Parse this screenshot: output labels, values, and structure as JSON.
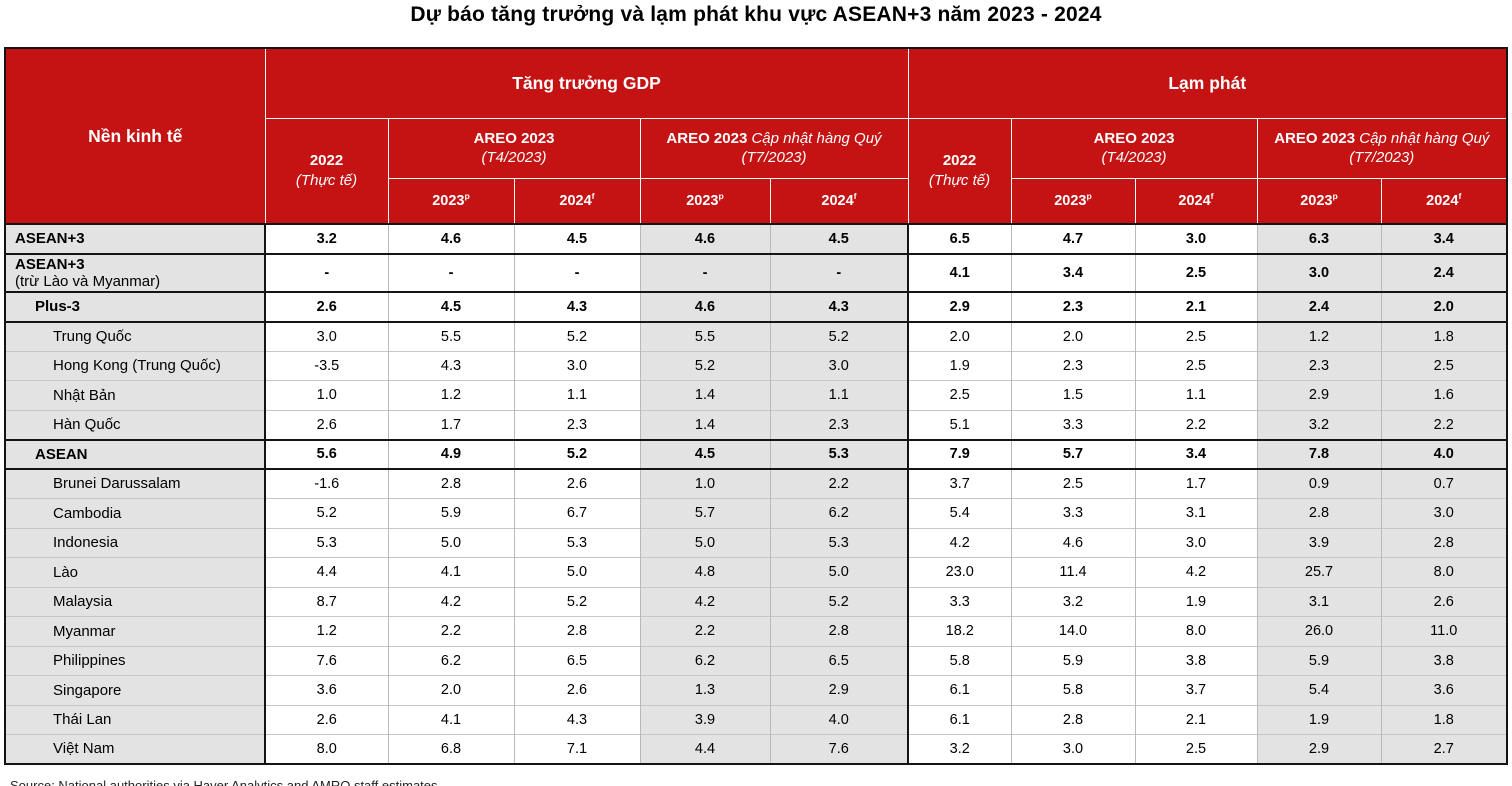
{
  "title": "Dự báo tăng trưởng và lạm phát khu vực ASEAN+3 năm 2023 - 2024",
  "source": "Source: National authorities via Haver Analytics and AMRO staff estimates",
  "colors": {
    "header_red": "#c51313",
    "shaded_column": "#e3e3e3",
    "border_dark": "#141414"
  },
  "table": {
    "corner_header": "Nền kinh tế",
    "gdp_header": "Tăng trưởng GDP",
    "inflation_header": "Lạm phát",
    "col_2022": {
      "year": "2022",
      "note": "(Thực tế)"
    },
    "areo": {
      "title": "AREO 2023",
      "note": "(T4/2023)"
    },
    "areo_update": {
      "title": "AREO 2023",
      "subtitle": "Cập nhật hàng Quý",
      "note": "(T7/2023)"
    },
    "year_2023": {
      "label": "2023",
      "sup": "p"
    },
    "year_2024": {
      "label": "2024",
      "sup": "f"
    },
    "rows": [
      {
        "label": "ASEAN+3",
        "label2": null,
        "indent": 0,
        "bold": true,
        "sep": "dark",
        "values": [
          "3.2",
          "4.6",
          "4.5",
          "4.6",
          "4.5",
          "6.5",
          "4.7",
          "3.0",
          "6.3",
          "3.4"
        ]
      },
      {
        "label": "ASEAN+3",
        "label2": "(trừ Lào và Myanmar)",
        "indent": 0,
        "bold": true,
        "sep": "dark",
        "values": [
          "-",
          "-",
          "-",
          "-",
          "-",
          "4.1",
          "3.4",
          "2.5",
          "3.0",
          "2.4"
        ]
      },
      {
        "label": "Plus-3",
        "label2": null,
        "indent": 1,
        "bold": true,
        "sep": "dark",
        "values": [
          "2.6",
          "4.5",
          "4.3",
          "4.6",
          "4.3",
          "2.9",
          "2.3",
          "2.1",
          "2.4",
          "2.0"
        ]
      },
      {
        "label": "Trung Quốc",
        "label2": null,
        "indent": 2,
        "bold": false,
        "sep": "dark",
        "values": [
          "3.0",
          "5.5",
          "5.2",
          "5.5",
          "5.2",
          "2.0",
          "2.0",
          "2.5",
          "1.2",
          "1.8"
        ]
      },
      {
        "label": "Hong Kong (Trung Quốc)",
        "label2": null,
        "indent": 2,
        "bold": false,
        "sep": "light",
        "values": [
          "-3.5",
          "4.3",
          "3.0",
          "5.2",
          "3.0",
          "1.9",
          "2.3",
          "2.5",
          "2.3",
          "2.5"
        ]
      },
      {
        "label": "Nhật Bản",
        "label2": null,
        "indent": 2,
        "bold": false,
        "sep": "light",
        "values": [
          "1.0",
          "1.2",
          "1.1",
          "1.4",
          "1.1",
          "2.5",
          "1.5",
          "1.1",
          "2.9",
          "1.6"
        ]
      },
      {
        "label": "Hàn Quốc",
        "label2": null,
        "indent": 2,
        "bold": false,
        "sep": "light",
        "values": [
          "2.6",
          "1.7",
          "2.3",
          "1.4",
          "2.3",
          "5.1",
          "3.3",
          "2.2",
          "3.2",
          "2.2"
        ]
      },
      {
        "label": "ASEAN",
        "label2": null,
        "indent": 1,
        "bold": true,
        "sep": "dark",
        "values": [
          "5.6",
          "4.9",
          "5.2",
          "4.5",
          "5.3",
          "7.9",
          "5.7",
          "3.4",
          "7.8",
          "4.0"
        ]
      },
      {
        "label": "Brunei Darussalam",
        "label2": null,
        "indent": 2,
        "bold": false,
        "sep": "dark",
        "values": [
          "-1.6",
          "2.8",
          "2.6",
          "1.0",
          "2.2",
          "3.7",
          "2.5",
          "1.7",
          "0.9",
          "0.7"
        ]
      },
      {
        "label": "Cambodia",
        "label2": null,
        "indent": 2,
        "bold": false,
        "sep": "light",
        "values": [
          "5.2",
          "5.9",
          "6.7",
          "5.7",
          "6.2",
          "5.4",
          "3.3",
          "3.1",
          "2.8",
          "3.0"
        ]
      },
      {
        "label": "Indonesia",
        "label2": null,
        "indent": 2,
        "bold": false,
        "sep": "light",
        "values": [
          "5.3",
          "5.0",
          "5.3",
          "5.0",
          "5.3",
          "4.2",
          "4.6",
          "3.0",
          "3.9",
          "2.8"
        ]
      },
      {
        "label": "Lào",
        "label2": null,
        "indent": 2,
        "bold": false,
        "sep": "light",
        "values": [
          "4.4",
          "4.1",
          "5.0",
          "4.8",
          "5.0",
          "23.0",
          "11.4",
          "4.2",
          "25.7",
          "8.0"
        ]
      },
      {
        "label": "Malaysia",
        "label2": null,
        "indent": 2,
        "bold": false,
        "sep": "light",
        "values": [
          "8.7",
          "4.2",
          "5.2",
          "4.2",
          "5.2",
          "3.3",
          "3.2",
          "1.9",
          "3.1",
          "2.6"
        ]
      },
      {
        "label": "Myanmar",
        "label2": null,
        "indent": 2,
        "bold": false,
        "sep": "light",
        "values": [
          "1.2",
          "2.2",
          "2.8",
          "2.2",
          "2.8",
          "18.2",
          "14.0",
          "8.0",
          "26.0",
          "11.0"
        ]
      },
      {
        "label": "Philippines",
        "label2": null,
        "indent": 2,
        "bold": false,
        "sep": "light",
        "values": [
          "7.6",
          "6.2",
          "6.5",
          "6.2",
          "6.5",
          "5.8",
          "5.9",
          "3.8",
          "5.9",
          "3.8"
        ]
      },
      {
        "label": "Singapore",
        "label2": null,
        "indent": 2,
        "bold": false,
        "sep": "light",
        "values": [
          "3.6",
          "2.0",
          "2.6",
          "1.3",
          "2.9",
          "6.1",
          "5.8",
          "3.7",
          "5.4",
          "3.6"
        ]
      },
      {
        "label": "Thái Lan",
        "label2": null,
        "indent": 2,
        "bold": false,
        "sep": "light",
        "values": [
          "2.6",
          "4.1",
          "4.3",
          "3.9",
          "4.0",
          "6.1",
          "2.8",
          "2.1",
          "1.9",
          "1.8"
        ]
      },
      {
        "label": "Việt Nam",
        "label2": null,
        "indent": 2,
        "bold": false,
        "sep": "light",
        "values": [
          "8.0",
          "6.8",
          "7.1",
          "4.4",
          "7.6",
          "3.2",
          "3.0",
          "2.5",
          "2.9",
          "2.7"
        ]
      }
    ]
  }
}
